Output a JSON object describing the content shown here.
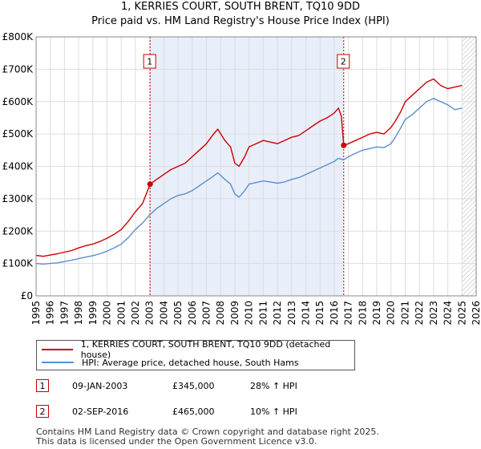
{
  "title": {
    "line1": "1, KERRIES COURT, SOUTH BRENT, TQ10 9DD",
    "line2": "Price paid vs. HM Land Registry's House Price Index (HPI)"
  },
  "legend": {
    "property_label": "1, KERRIES COURT, SOUTH BRENT, TQ10 9DD (detached house)",
    "hpi_label": "HPI: Average price, detached house, South Hams"
  },
  "transactions": [
    {
      "number": "1",
      "date": "09-JAN-2003",
      "price": "£345,000",
      "hpi_change": "28% ↑ HPI"
    },
    {
      "number": "2",
      "date": "02-SEP-2016",
      "price": "£465,000",
      "hpi_change": "10% ↑ HPI"
    }
  ],
  "footer": {
    "line1": "Contains HM Land Registry data © Crown copyright and database right 2025.",
    "line2": "This data is licensed under the Open Government Licence v3.0."
  },
  "colors": {
    "property": "#cc0000",
    "hpi": "#5b8fce",
    "shade": "#e8eefa",
    "hatch": "#bbbbbb"
  },
  "chart_data": {
    "type": "line",
    "title": "1, KERRIES COURT, SOUTH BRENT, TQ10 9DD — Price paid vs. HM Land Registry's House Price Index (HPI)",
    "xlabel": "",
    "ylabel": "",
    "xlim": [
      1995,
      2026
    ],
    "ylim": [
      0,
      800000
    ],
    "x_ticks": [
      1995,
      1996,
      1997,
      1998,
      1999,
      2000,
      2001,
      2002,
      2003,
      2004,
      2005,
      2006,
      2007,
      2008,
      2009,
      2010,
      2011,
      2012,
      2013,
      2014,
      2015,
      2016,
      2017,
      2018,
      2019,
      2020,
      2021,
      2022,
      2023,
      2024,
      2025,
      2026
    ],
    "y_ticks": [
      {
        "value": 0,
        "label": "£0"
      },
      {
        "value": 100000,
        "label": "£100K"
      },
      {
        "value": 200000,
        "label": "£200K"
      },
      {
        "value": 300000,
        "label": "£300K"
      },
      {
        "value": 400000,
        "label": "£400K"
      },
      {
        "value": 500000,
        "label": "£500K"
      },
      {
        "value": 600000,
        "label": "£600K"
      },
      {
        "value": 700000,
        "label": "£700K"
      },
      {
        "value": 800000,
        "label": "£800K"
      }
    ],
    "grid": true,
    "shaded_region": {
      "from": 2003.03,
      "to": 2016.67
    },
    "forecast_hatch_from": 2025.0,
    "series": [
      {
        "name": "1, KERRIES COURT, SOUTH BRENT, TQ10 9DD (detached house)",
        "x": [
          1995.0,
          1995.5,
          1996.0,
          1996.5,
          1997.0,
          1997.5,
          1998.0,
          1998.5,
          1999.0,
          1999.5,
          2000.0,
          2000.5,
          2001.0,
          2001.5,
          2002.0,
          2002.5,
          2003.03,
          2003.5,
          2004.0,
          2004.5,
          2005.0,
          2005.5,
          2006.0,
          2006.5,
          2007.0,
          2007.5,
          2007.8,
          2008.3,
          2008.7,
          2009.0,
          2009.3,
          2009.7,
          2010.0,
          2010.5,
          2011.0,
          2011.5,
          2012.0,
          2012.5,
          2013.0,
          2013.5,
          2014.0,
          2014.5,
          2015.0,
          2015.5,
          2016.0,
          2016.3,
          2016.5,
          2016.67,
          2017.0,
          2017.5,
          2018.0,
          2018.5,
          2019.0,
          2019.5,
          2020.0,
          2020.3,
          2020.7,
          2021.0,
          2021.5,
          2022.0,
          2022.5,
          2023.0,
          2023.5,
          2024.0,
          2024.5,
          2025.0
        ],
        "values": [
          125000,
          122000,
          126000,
          130000,
          135000,
          140000,
          148000,
          155000,
          160000,
          168000,
          178000,
          190000,
          205000,
          230000,
          260000,
          285000,
          345000,
          360000,
          375000,
          390000,
          400000,
          410000,
          430000,
          450000,
          470000,
          500000,
          515000,
          480000,
          460000,
          410000,
          400000,
          430000,
          460000,
          470000,
          480000,
          475000,
          470000,
          480000,
          490000,
          495000,
          510000,
          525000,
          540000,
          550000,
          565000,
          580000,
          555000,
          465000,
          470000,
          480000,
          490000,
          500000,
          505000,
          500000,
          520000,
          540000,
          570000,
          600000,
          620000,
          640000,
          660000,
          670000,
          650000,
          640000,
          645000,
          650000
        ]
      },
      {
        "name": "HPI: Average price, detached house, South Hams",
        "x": [
          1995.0,
          1995.5,
          1996.0,
          1996.5,
          1997.0,
          1997.5,
          1998.0,
          1998.5,
          1999.0,
          1999.5,
          2000.0,
          2000.5,
          2001.0,
          2001.5,
          2002.0,
          2002.5,
          2003.0,
          2003.5,
          2004.0,
          2004.5,
          2005.0,
          2005.5,
          2006.0,
          2006.5,
          2007.0,
          2007.5,
          2007.8,
          2008.3,
          2008.7,
          2009.0,
          2009.3,
          2009.7,
          2010.0,
          2010.5,
          2011.0,
          2011.5,
          2012.0,
          2012.5,
          2013.0,
          2013.5,
          2014.0,
          2014.5,
          2015.0,
          2015.5,
          2016.0,
          2016.3,
          2016.67,
          2017.0,
          2017.5,
          2018.0,
          2018.5,
          2019.0,
          2019.5,
          2020.0,
          2020.3,
          2020.7,
          2021.0,
          2021.5,
          2022.0,
          2022.5,
          2023.0,
          2023.5,
          2024.0,
          2024.5,
          2025.0
        ],
        "values": [
          100000,
          98000,
          100000,
          102000,
          106000,
          110000,
          115000,
          120000,
          124000,
          130000,
          138000,
          148000,
          160000,
          180000,
          205000,
          225000,
          250000,
          270000,
          285000,
          300000,
          310000,
          315000,
          325000,
          340000,
          355000,
          370000,
          380000,
          360000,
          345000,
          315000,
          305000,
          325000,
          345000,
          350000,
          355000,
          352000,
          348000,
          352000,
          360000,
          365000,
          375000,
          385000,
          395000,
          405000,
          415000,
          425000,
          420000,
          430000,
          440000,
          450000,
          455000,
          460000,
          458000,
          470000,
          490000,
          520000,
          545000,
          560000,
          580000,
          600000,
          610000,
          600000,
          590000,
          575000,
          580000
        ]
      }
    ],
    "annotations": [
      {
        "label": "1",
        "x": 2003.03,
        "value": 345000
      },
      {
        "label": "2",
        "x": 2016.67,
        "value": 465000
      }
    ]
  }
}
